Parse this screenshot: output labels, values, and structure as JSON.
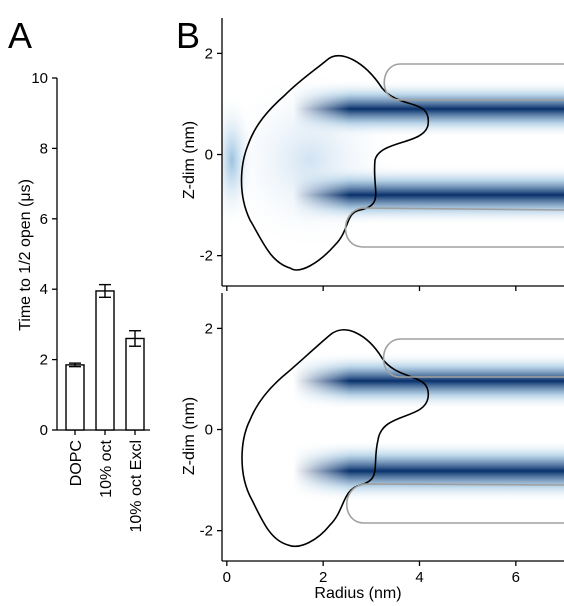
{
  "panels": {
    "a": {
      "letter": "A"
    },
    "b": {
      "letter": "B"
    }
  },
  "chart_data": [
    {
      "type": "bar",
      "panel": "A",
      "categories": [
        "DOPC",
        "10% oct",
        "10% oct Excl"
      ],
      "values": [
        1.85,
        3.95,
        2.6
      ],
      "errors": [
        0.05,
        0.18,
        0.22
      ],
      "ylabel": "Time to 1/2 open (μs)",
      "ylim": [
        0,
        10
      ],
      "yticks": [
        "0",
        "2",
        "4",
        "6",
        "8",
        "10"
      ],
      "bar_color": "#ffffff",
      "edge_color": "#000000"
    },
    {
      "type": "heatmap",
      "panel": "B-top",
      "ylabel": "Z-dim (nm)",
      "xlim": [
        -0.1,
        7
      ],
      "ylim": [
        -2.6,
        2.7
      ],
      "yticks": [
        "2",
        "0",
        "-2"
      ],
      "colormap": [
        "#ffffff",
        "#08306b"
      ],
      "gray_contour_color": "#a0a0a0",
      "black_contour_color": "#000000"
    },
    {
      "type": "heatmap",
      "panel": "B-bottom",
      "ylabel": "Z-dim (nm)",
      "xlabel": "Radius (nm)",
      "xlim": [
        -0.1,
        7
      ],
      "ylim": [
        -2.6,
        2.7
      ],
      "xticks": [
        "0",
        "2",
        "4",
        "6"
      ],
      "yticks": [
        "2",
        "0",
        "-2"
      ],
      "colormap": [
        "#ffffff",
        "#08306b"
      ],
      "gray_contour_color": "#a0a0a0",
      "black_contour_color": "#000000"
    }
  ]
}
